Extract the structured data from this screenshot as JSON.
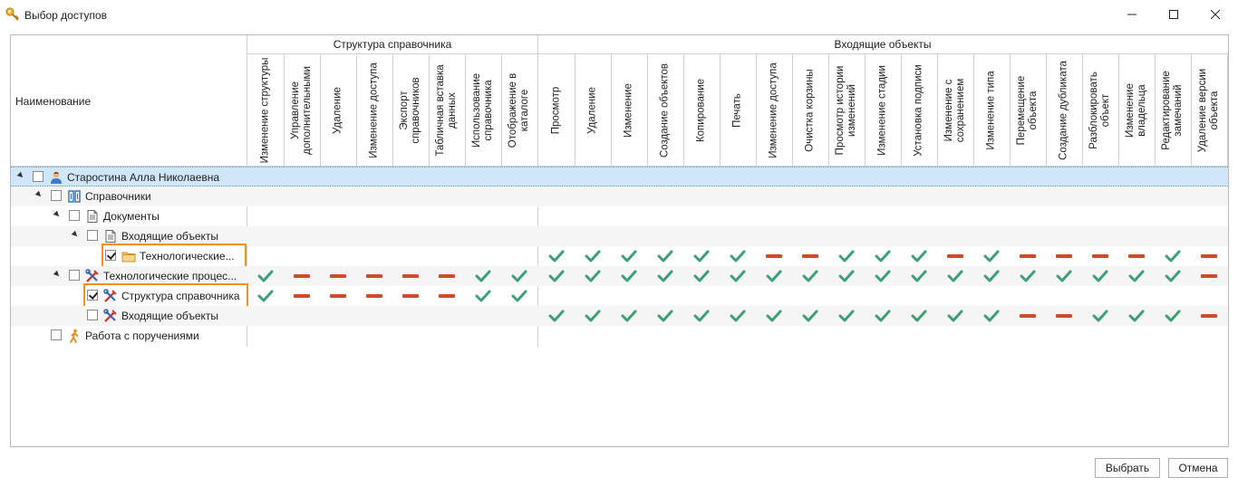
{
  "window": {
    "title": "Выбор доступов"
  },
  "grid": {
    "name_header": "Наименование",
    "groups": [
      {
        "label": "Структура справочника"
      },
      {
        "label": "Входящие объекты"
      }
    ],
    "columns": [
      "Изменение структуры",
      "Управление дополнительными",
      "Удаление",
      "Изменение доступа",
      "Экспорт справочников",
      "Табличная вставка данных",
      "Использование справочника",
      "Отображение в каталоге",
      "Просмотр",
      "Удаление",
      "Изменение",
      "Создание объектов",
      "Копирование",
      "Печать",
      "Изменение доступа",
      "Очистка корзины",
      "Просмотр истории изменений",
      "Изменение стадии",
      "Установка подписи",
      "Изменение с сохранением",
      "Изменение типа",
      "Перемещение объекта",
      "Создание дубликата",
      "Разблокировать объект",
      "Изменение владельца",
      "Редактирование замечаний",
      "Удаление версии объекта"
    ],
    "rows": [
      {
        "label": "Старостина Алла Николаевна",
        "level": 0,
        "expanded": true,
        "checked": false,
        "icon": "user-icon",
        "selected": true,
        "highlighted": false,
        "marks": []
      },
      {
        "label": "Справочники",
        "level": 1,
        "expanded": true,
        "checked": false,
        "icon": "reference-books-icon",
        "selected": false,
        "highlighted": false,
        "marks": []
      },
      {
        "label": "Документы",
        "level": 2,
        "expanded": true,
        "checked": false,
        "icon": "document-icon",
        "selected": false,
        "highlighted": false,
        "marks": []
      },
      {
        "label": "Входящие объекты",
        "level": 3,
        "expanded": true,
        "checked": false,
        "icon": "document-icon",
        "selected": false,
        "highlighted": false,
        "marks": []
      },
      {
        "label": "Технологические...",
        "level": 4,
        "expanded": false,
        "checked": true,
        "icon": "folder-icon",
        "selected": false,
        "highlighted": true,
        "marks": [
          "",
          "",
          "",
          "",
          "",
          "",
          "",
          "",
          "yes",
          "yes",
          "yes",
          "yes",
          "yes",
          "yes",
          "no",
          "no",
          "yes",
          "yes",
          "yes",
          "no",
          "yes",
          "no",
          "no",
          "no",
          "no",
          "yes",
          "no"
        ]
      },
      {
        "label": "Технологические процес...",
        "level": 2,
        "expanded": true,
        "checked": false,
        "icon": "tools-icon",
        "selected": false,
        "highlighted": false,
        "marks": [
          "yes",
          "no",
          "no",
          "no",
          "no",
          "no",
          "yes",
          "yes",
          "yes",
          "yes",
          "yes",
          "yes",
          "yes",
          "yes",
          "yes",
          "yes",
          "yes",
          "yes",
          "yes",
          "yes",
          "yes",
          "yes",
          "yes",
          "yes",
          "yes",
          "yes",
          "no"
        ]
      },
      {
        "label": "Структура справочника",
        "level": 3,
        "expanded": false,
        "checked": true,
        "icon": "tools-icon",
        "selected": false,
        "highlighted": true,
        "marks": [
          "yes",
          "no",
          "no",
          "no",
          "no",
          "no",
          "yes",
          "yes",
          "",
          "",
          "",
          "",
          "",
          "",
          "",
          "",
          "",
          "",
          "",
          "",
          "",
          "",
          "",
          "",
          "",
          "",
          ""
        ]
      },
      {
        "label": "Входящие объекты",
        "level": 3,
        "expanded": false,
        "checked": false,
        "icon": "tools-icon",
        "selected": false,
        "highlighted": false,
        "marks": [
          "",
          "",
          "",
          "",
          "",
          "",
          "",
          "",
          "yes",
          "yes",
          "yes",
          "yes",
          "yes",
          "yes",
          "yes",
          "yes",
          "yes",
          "yes",
          "yes",
          "yes",
          "yes",
          "no",
          "no",
          "yes",
          "yes",
          "yes",
          "no"
        ]
      },
      {
        "label": "Работа с поручениями",
        "level": 1,
        "expanded": false,
        "checked": false,
        "icon": "walking-person-icon",
        "selected": false,
        "highlighted": false,
        "marks": []
      }
    ]
  },
  "colors": {
    "yes": "#3d9e78",
    "no": "#d04a2c",
    "highlight": "#f39221",
    "selection": "#cfe6fb"
  },
  "buttons": {
    "select": "Выбрать",
    "cancel": "Отмена"
  }
}
